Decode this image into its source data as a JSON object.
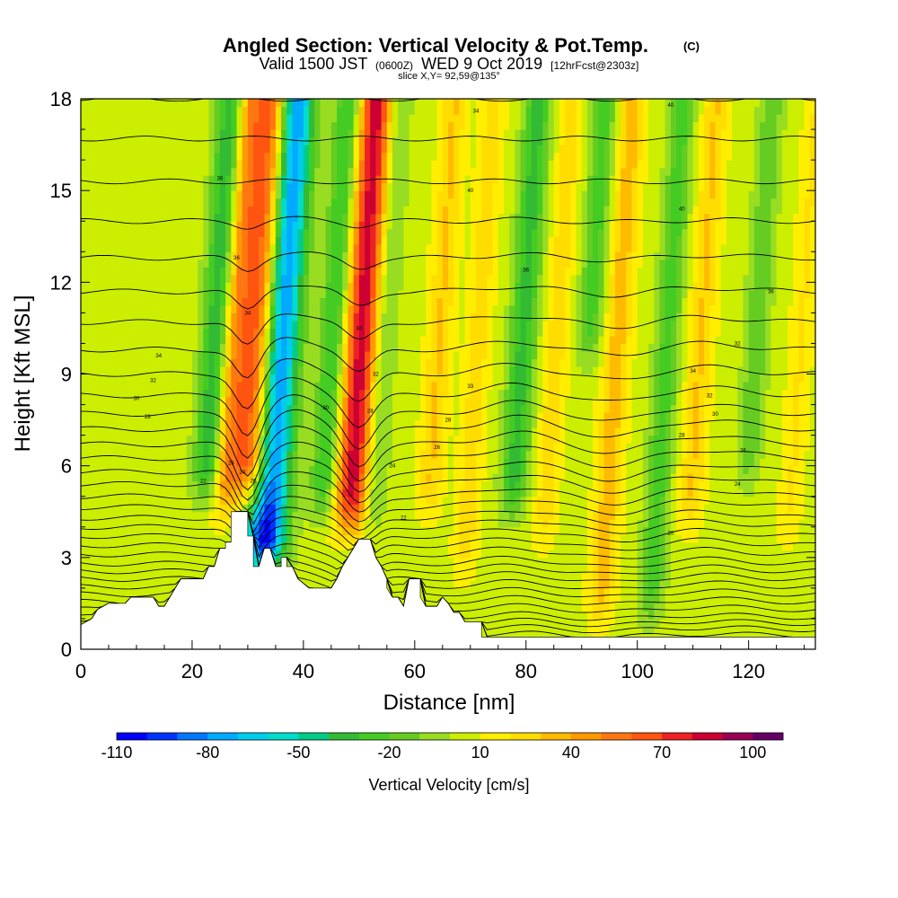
{
  "chart_data": {
    "type": "heatmap",
    "title": "Angled Section: Vertical Velocity & Pot.Temp.",
    "title_copyright": "(C)",
    "subtitle": {
      "valid": "Valid 1500 JST",
      "utc": "(0600Z)",
      "date": "WED 9 Oct 2019",
      "fcst": "[12hrFcst@2303z]"
    },
    "slice_text": "slice X,Y= 92,59@135°",
    "xlabel": "Distance [nm]",
    "ylabel": "Height [Kft MSL]",
    "xlim": [
      0,
      132
    ],
    "ylim": [
      0,
      18
    ],
    "xticks": [
      0,
      20,
      40,
      60,
      80,
      100,
      120
    ],
    "yticks": [
      0,
      3,
      6,
      9,
      12,
      15,
      18
    ],
    "colorbar": {
      "label": "Vertical Velocity [cm/s]",
      "tick_labels": [
        -110,
        -80,
        -50,
        -20,
        10,
        40,
        70,
        100
      ],
      "min": -110,
      "max": 110,
      "colors": [
        "#0000ff",
        "#0033ff",
        "#0077ff",
        "#00aaff",
        "#00ccee",
        "#00ddcc",
        "#00cc88",
        "#33bb33",
        "#44cc22",
        "#66cc22",
        "#99dd22",
        "#ccee00",
        "#ffee00",
        "#ffdd00",
        "#ffbb00",
        "#ff9900",
        "#ff7711",
        "#ff5511",
        "#ee2222",
        "#cc0033",
        "#990055",
        "#660066"
      ]
    },
    "series": [
      {
        "name": "Vertical Velocity",
        "unit": "cm/s",
        "updraft_bands": [
          {
            "x": 26,
            "top": 18,
            "bottom": 4.0,
            "peak": 45
          },
          {
            "x": 31,
            "top": 18,
            "bottom": 4.5,
            "peak": 90
          },
          {
            "x": 49,
            "top": 18,
            "bottom": 3.5,
            "peak": 80
          },
          {
            "x": 63,
            "top": 18,
            "bottom": 4.0,
            "peak": 25
          },
          {
            "x": 70,
            "top": 18,
            "bottom": 2.0,
            "peak": 20
          },
          {
            "x": 84,
            "top": 18,
            "bottom": 3.0,
            "peak": 20
          },
          {
            "x": 95,
            "top": 18,
            "bottom": 0.5,
            "peak": 30
          },
          {
            "x": 110,
            "top": 18,
            "bottom": 3.5,
            "peak": 25
          },
          {
            "x": 128,
            "top": 18,
            "bottom": 3.0,
            "peak": 15
          }
        ],
        "downdraft_bands": [
          {
            "x": 23,
            "top": 18,
            "bottom": 4.5,
            "peak": -50
          },
          {
            "x": 34,
            "top": 18,
            "bottom": 2.0,
            "peak": -110
          },
          {
            "x": 44,
            "top": 18,
            "bottom": 4.0,
            "peak": -40
          },
          {
            "x": 53,
            "top": 18,
            "bottom": 3.5,
            "peak": -25
          },
          {
            "x": 78,
            "top": 18,
            "bottom": 4.0,
            "peak": -40
          },
          {
            "x": 90,
            "top": 18,
            "bottom": 9.0,
            "peak": -30
          },
          {
            "x": 104,
            "top": 18,
            "bottom": 0.5,
            "peak": -30
          },
          {
            "x": 120,
            "top": 18,
            "bottom": 5.0,
            "peak": -25
          }
        ]
      },
      {
        "name": "Pot.Temp.",
        "unit": "C",
        "contour_base": [
          0.25,
          0.45,
          0.65,
          0.85,
          1.05,
          1.3,
          1.55,
          1.8,
          2.05,
          2.3,
          2.55,
          2.8,
          3.1,
          3.4,
          3.7,
          4.0,
          4.3,
          4.65,
          5.0,
          5.4,
          5.8,
          6.25,
          6.7,
          7.2,
          7.7,
          8.3,
          9.0,
          9.8,
          10.7,
          11.7,
          12.8,
          14.0,
          15.3,
          16.7,
          18.0
        ],
        "labels": [
          {
            "x": 25,
            "y": 15.4,
            "text": "36"
          },
          {
            "x": 70,
            "y": 15.0,
            "text": "40"
          },
          {
            "x": 108,
            "y": 14.4,
            "text": "40"
          },
          {
            "x": 71,
            "y": 17.6,
            "text": "34"
          },
          {
            "x": 106,
            "y": 17.8,
            "text": "40"
          },
          {
            "x": 28,
            "y": 12.8,
            "text": "36"
          },
          {
            "x": 80,
            "y": 12.4,
            "text": "36"
          },
          {
            "x": 124,
            "y": 11.7,
            "text": "36"
          },
          {
            "x": 118,
            "y": 10.0,
            "text": "32"
          },
          {
            "x": 14,
            "y": 9.6,
            "text": "34"
          },
          {
            "x": 13,
            "y": 8.8,
            "text": "32"
          },
          {
            "x": 10,
            "y": 8.2,
            "text": "30"
          },
          {
            "x": 12,
            "y": 7.6,
            "text": "28"
          },
          {
            "x": 70,
            "y": 8.6,
            "text": "33"
          },
          {
            "x": 110,
            "y": 9.1,
            "text": "34"
          },
          {
            "x": 113,
            "y": 8.3,
            "text": "32"
          },
          {
            "x": 44,
            "y": 7.9,
            "text": "30"
          },
          {
            "x": 66,
            "y": 7.5,
            "text": "28"
          },
          {
            "x": 114,
            "y": 7.7,
            "text": "30"
          },
          {
            "x": 108,
            "y": 7.0,
            "text": "28"
          },
          {
            "x": 64,
            "y": 6.6,
            "text": "26"
          },
          {
            "x": 119,
            "y": 6.5,
            "text": "26"
          },
          {
            "x": 27,
            "y": 6.1,
            "text": "26"
          },
          {
            "x": 29,
            "y": 5.8,
            "text": "24"
          },
          {
            "x": 22,
            "y": 5.5,
            "text": "22"
          },
          {
            "x": 56,
            "y": 6.0,
            "text": "24"
          },
          {
            "x": 118,
            "y": 5.4,
            "text": "24"
          },
          {
            "x": 58,
            "y": 4.3,
            "text": "22"
          },
          {
            "x": 106,
            "y": 3.8,
            "text": "20"
          },
          {
            "x": 31,
            "y": 5.5,
            "text": "20"
          },
          {
            "x": 52,
            "y": 7.8,
            "text": "28"
          },
          {
            "x": 50,
            "y": 10.5,
            "text": "34"
          },
          {
            "x": 53,
            "y": 9.0,
            "text": "32"
          },
          {
            "x": 30,
            "y": 11.0,
            "text": "34"
          }
        ]
      }
    ],
    "terrain": [
      [
        0,
        0.8
      ],
      [
        2,
        1.0
      ],
      [
        3,
        1.3
      ],
      [
        5,
        1.5
      ],
      [
        8,
        1.5
      ],
      [
        9,
        1.7
      ],
      [
        13,
        1.7
      ],
      [
        14,
        1.4
      ],
      [
        15,
        1.4
      ],
      [
        16,
        1.7
      ],
      [
        17,
        2.0
      ],
      [
        18,
        2.3
      ],
      [
        19,
        2.3
      ],
      [
        22,
        2.3
      ],
      [
        23,
        2.7
      ],
      [
        24,
        2.7
      ],
      [
        25,
        3.3
      ],
      [
        26,
        3.3
      ],
      [
        26,
        3.5
      ],
      [
        27,
        3.5
      ],
      [
        27,
        4.5
      ],
      [
        30,
        4.5
      ],
      [
        30,
        3.7
      ],
      [
        31,
        3.7
      ],
      [
        31,
        2.7
      ],
      [
        32,
        2.7
      ],
      [
        33,
        3.3
      ],
      [
        34,
        3.3
      ],
      [
        35,
        2.7
      ],
      [
        36,
        2.7
      ],
      [
        36,
        3.0
      ],
      [
        37,
        3.0
      ],
      [
        37,
        2.7
      ],
      [
        38,
        2.7
      ],
      [
        39,
        2.3
      ],
      [
        41,
        2.0
      ],
      [
        45,
        2.0
      ],
      [
        46,
        2.3
      ],
      [
        47,
        2.7
      ],
      [
        48,
        3.0
      ],
      [
        49,
        3.3
      ],
      [
        50,
        3.6
      ],
      [
        52,
        3.6
      ],
      [
        53,
        3.0
      ],
      [
        54,
        2.7
      ],
      [
        55,
        2.3
      ],
      [
        55,
        2.0
      ],
      [
        56,
        1.7
      ],
      [
        57,
        1.7
      ],
      [
        58,
        1.4
      ],
      [
        59,
        2.3
      ],
      [
        61,
        2.3
      ],
      [
        61,
        1.7
      ],
      [
        62,
        1.4
      ],
      [
        64,
        1.4
      ],
      [
        65,
        1.7
      ],
      [
        66,
        1.5
      ],
      [
        67,
        1.2
      ],
      [
        68,
        1.2
      ],
      [
        69,
        0.9
      ],
      [
        72,
        0.9
      ],
      [
        72,
        0.4
      ],
      [
        132,
        0.4
      ]
    ]
  }
}
